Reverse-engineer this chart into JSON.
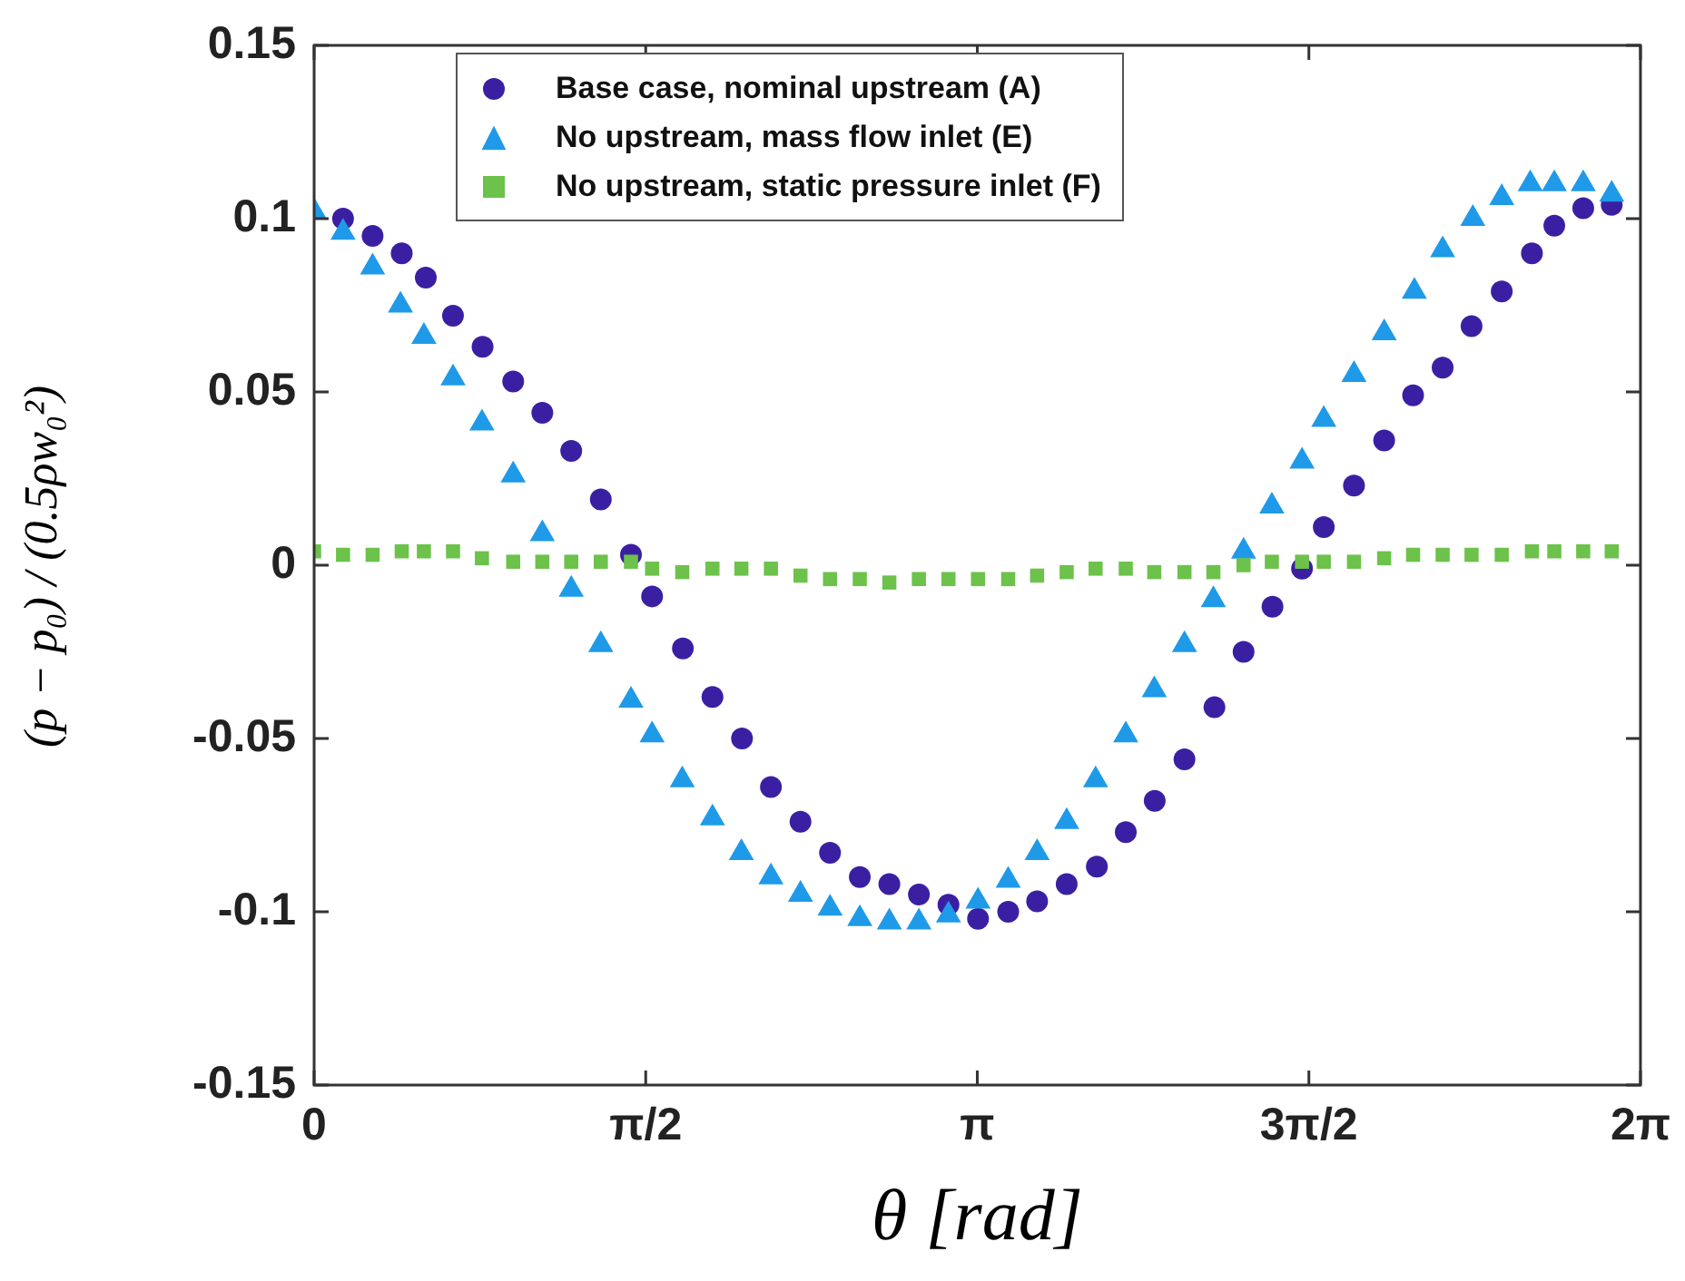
{
  "chart_data": {
    "type": "scatter",
    "xlabel": "θ [rad]",
    "ylabel": "(p − p₀) / (0.5ρw₀²)",
    "xlim": [
      0,
      6.2832
    ],
    "xticks": [
      {
        "value": 0,
        "label": "0"
      },
      {
        "value": 1.5708,
        "label": "π/2"
      },
      {
        "value": 3.1416,
        "label": "π"
      },
      {
        "value": 4.7124,
        "label": "3π/2"
      },
      {
        "value": 6.2832,
        "label": "2π"
      }
    ],
    "ylim": [
      -0.15,
      0.15
    ],
    "yticks": [
      -0.15,
      -0.1,
      -0.05,
      0,
      0.05,
      0.1,
      0.15
    ],
    "grid": false,
    "legend": "top",
    "series": [
      {
        "name": "Base case, nominal upstream (A)",
        "color": "#3b1fa3",
        "marker": "circle",
        "x": [
          0.137,
          0.277,
          0.415,
          0.529,
          0.658,
          0.798,
          0.943,
          1.081,
          1.218,
          1.358,
          1.501,
          1.601,
          1.747,
          1.887,
          2.027,
          2.164,
          2.304,
          2.444,
          2.585,
          2.725,
          2.865,
          3.005,
          3.145,
          3.288,
          3.425,
          3.565,
          3.708,
          3.845,
          3.982,
          4.123,
          4.265,
          4.403,
          4.54,
          4.68,
          4.783,
          4.926,
          5.069,
          5.206,
          5.346,
          5.483,
          5.626,
          5.769,
          5.875,
          6.012,
          6.147
        ],
        "values": [
          0.1,
          0.095,
          0.09,
          0.083,
          0.072,
          0.063,
          0.053,
          0.044,
          0.033,
          0.019,
          0.003,
          -0.009,
          -0.024,
          -0.038,
          -0.05,
          -0.064,
          -0.074,
          -0.083,
          -0.09,
          -0.092,
          -0.095,
          -0.098,
          -0.102,
          -0.1,
          -0.097,
          -0.092,
          -0.087,
          -0.077,
          -0.068,
          -0.056,
          -0.041,
          -0.025,
          -0.012,
          -0.001,
          0.011,
          0.023,
          0.036,
          0.049,
          0.057,
          0.069,
          0.079,
          0.09,
          0.098,
          0.103,
          0.104
        ]
      },
      {
        "name": "No upstream, mass flow inlet (E)",
        "color": "#1e9ae8",
        "marker": "triangle",
        "x": [
          0,
          0.137,
          0.277,
          0.409,
          0.52,
          0.658,
          0.795,
          0.943,
          1.081,
          1.218,
          1.358,
          1.501,
          1.601,
          1.744,
          1.887,
          2.024,
          2.164,
          2.304,
          2.444,
          2.585,
          2.725,
          2.865,
          3.005,
          3.145,
          3.288,
          3.425,
          3.565,
          3.702,
          3.845,
          3.98,
          4.123,
          4.26,
          4.403,
          4.537,
          4.68,
          4.783,
          4.926,
          5.069,
          5.212,
          5.346,
          5.489,
          5.626,
          5.761,
          5.875,
          6.012,
          6.147
        ],
        "values": [
          0.102,
          0.096,
          0.086,
          0.075,
          0.066,
          0.054,
          0.041,
          0.026,
          0.009,
          -0.007,
          -0.023,
          -0.039,
          -0.049,
          -0.062,
          -0.073,
          -0.083,
          -0.09,
          -0.095,
          -0.099,
          -0.102,
          -0.103,
          -0.103,
          -0.101,
          -0.097,
          -0.091,
          -0.083,
          -0.074,
          -0.062,
          -0.049,
          -0.036,
          -0.023,
          -0.01,
          0.004,
          0.017,
          0.03,
          0.042,
          0.055,
          0.067,
          0.079,
          0.091,
          0.1,
          0.106,
          0.11,
          0.11,
          0.11,
          0.107
        ]
      },
      {
        "name": "No upstream, static pressure inlet (F)",
        "color": "#6cc24a",
        "marker": "square",
        "x": [
          0,
          0.137,
          0.277,
          0.415,
          0.52,
          0.658,
          0.795,
          0.943,
          1.081,
          1.218,
          1.358,
          1.501,
          1.601,
          1.744,
          1.887,
          2.024,
          2.164,
          2.304,
          2.444,
          2.585,
          2.725,
          2.865,
          3.005,
          3.145,
          3.288,
          3.425,
          3.565,
          3.702,
          3.845,
          3.98,
          4.123,
          4.26,
          4.403,
          4.537,
          4.68,
          4.783,
          4.926,
          5.069,
          5.206,
          5.346,
          5.483,
          5.626,
          5.769,
          5.875,
          6.012,
          6.147
        ],
        "values": [
          0.004,
          0.003,
          0.003,
          0.004,
          0.004,
          0.004,
          0.002,
          0.001,
          0.001,
          0.001,
          0.001,
          0.001,
          -0.001,
          -0.002,
          -0.001,
          -0.001,
          -0.001,
          -0.003,
          -0.004,
          -0.004,
          -0.005,
          -0.004,
          -0.004,
          -0.004,
          -0.004,
          -0.003,
          -0.002,
          -0.001,
          -0.001,
          -0.002,
          -0.002,
          -0.002,
          0,
          0.001,
          0.001,
          0.001,
          0.001,
          0.002,
          0.003,
          0.003,
          0.003,
          0.003,
          0.004,
          0.004,
          0.004,
          0.004
        ]
      }
    ]
  }
}
